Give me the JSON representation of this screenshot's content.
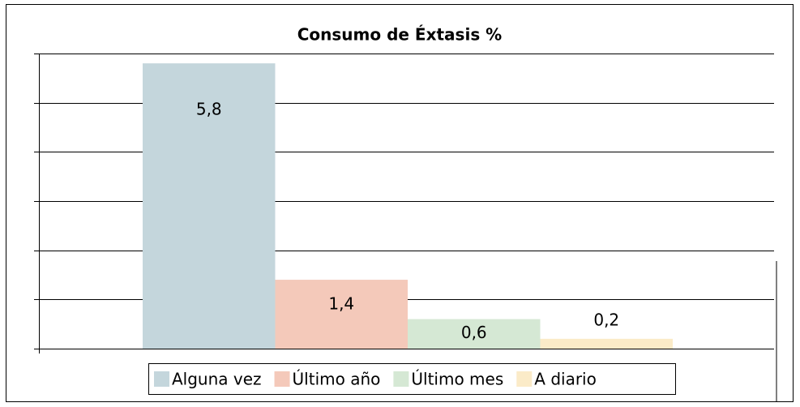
{
  "chart_data": {
    "type": "bar",
    "title": "Consumo de Éxtasis %",
    "series": [
      {
        "name": "Alguna vez",
        "color": "#c4d6dc",
        "values": [
          5.8
        ],
        "value_labels": [
          "5,8"
        ]
      },
      {
        "name": "Último año",
        "color": "#f4c9ba",
        "values": [
          1.4
        ],
        "value_labels": [
          "1,4"
        ]
      },
      {
        "name": "Último mes",
        "color": "#d5e8d4",
        "values": [
          0.6
        ],
        "value_labels": [
          "0,6"
        ]
      },
      {
        "name": "A diario",
        "color": "#fbebc8",
        "values": [
          0.2
        ],
        "value_labels": [
          "0,2"
        ]
      }
    ],
    "ylim": [
      0,
      6
    ],
    "yticks": [
      0,
      1,
      2,
      3,
      4,
      5,
      6
    ],
    "grid": true,
    "legend": "bottom"
  }
}
